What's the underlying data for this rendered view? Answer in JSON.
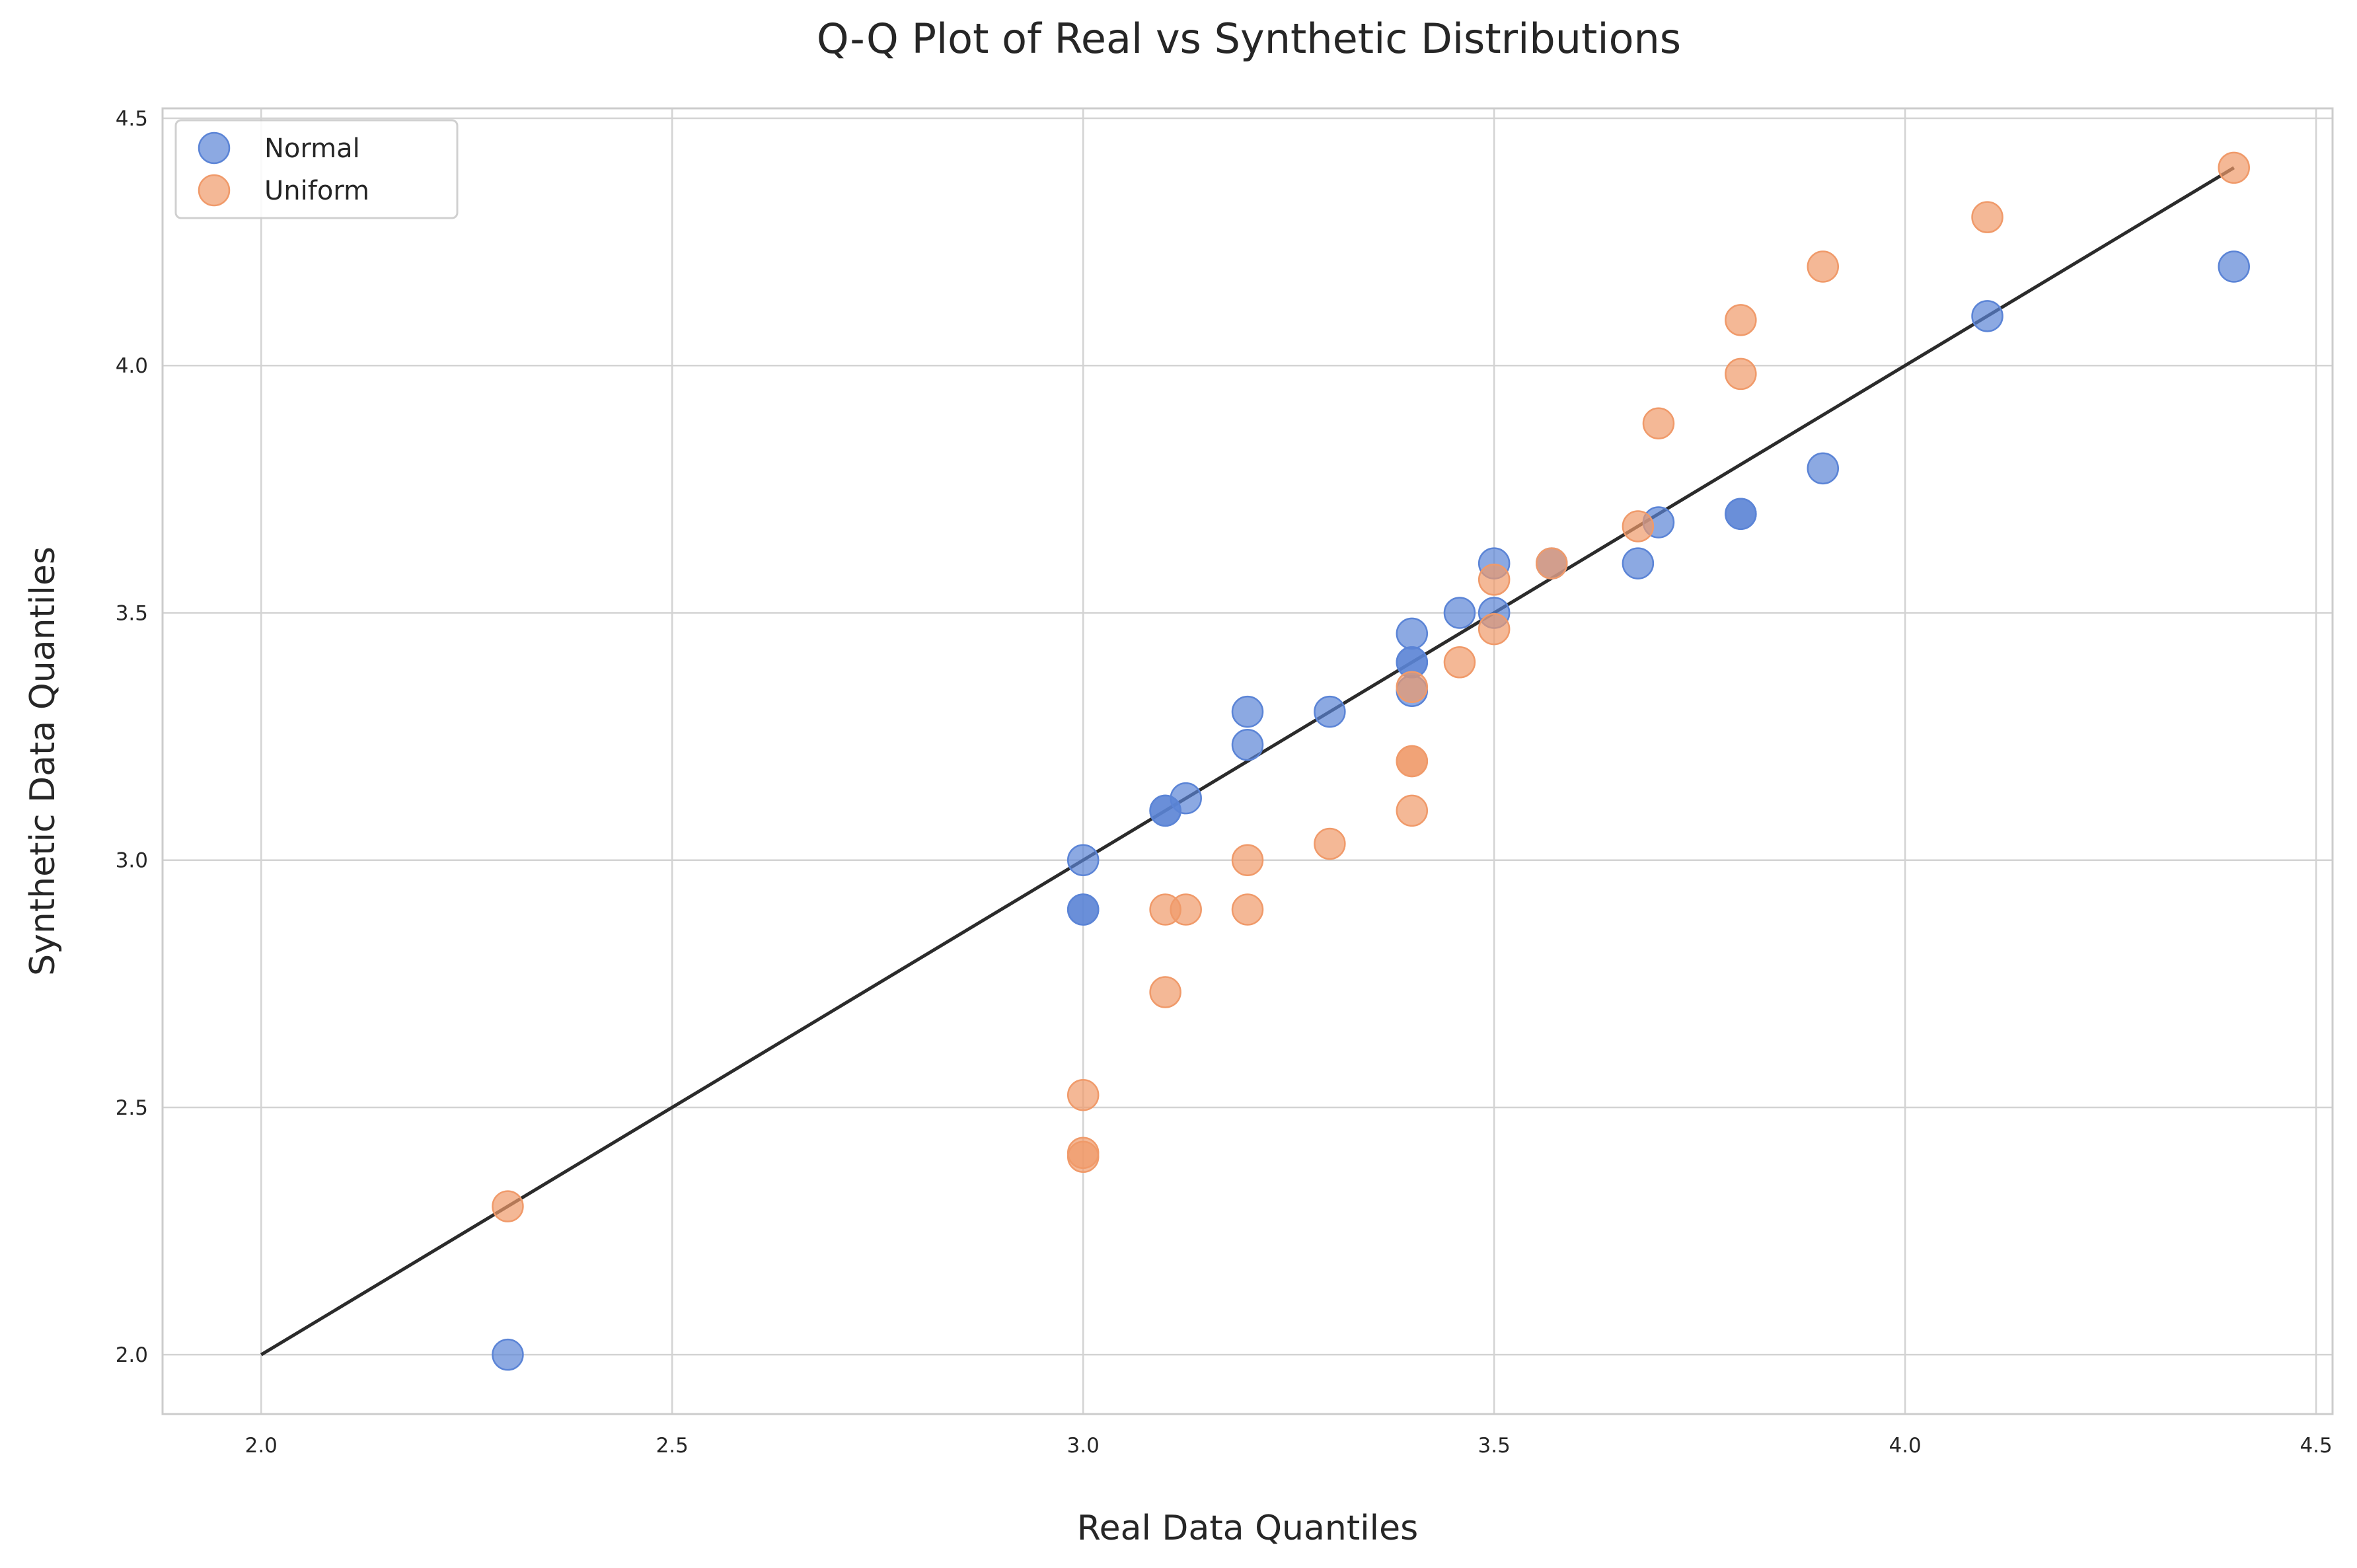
{
  "chart_data": {
    "type": "scatter",
    "title": "Q-Q Plot of Real vs Synthetic Distributions",
    "xlabel": "Real Data Quantiles",
    "ylabel": "Synthetic Data Quantiles",
    "xlim": [
      1.88,
      4.52
    ],
    "ylim": [
      1.88,
      4.52
    ],
    "xticks": [
      "2.0",
      "2.5",
      "3.0",
      "3.5",
      "4.0",
      "4.5"
    ],
    "yticks": [
      "2.0",
      "2.5",
      "3.0",
      "3.5",
      "4.0",
      "4.5"
    ],
    "grid": true,
    "legend_position": "top-left",
    "reference_line": {
      "x": [
        2.0,
        4.4
      ],
      "y": [
        2.0,
        4.4
      ],
      "color": "#2b2b2b"
    },
    "series": [
      {
        "name": "Normal",
        "color": "#5b84d6",
        "points": [
          [
            2.3,
            2.0
          ],
          [
            3.0,
            2.9
          ],
          [
            3.0,
            2.9
          ],
          [
            3.0,
            3.0
          ],
          [
            3.1,
            3.1
          ],
          [
            3.1,
            3.1
          ],
          [
            3.125,
            3.125
          ],
          [
            3.2,
            3.233
          ],
          [
            3.2,
            3.3
          ],
          [
            3.3,
            3.3
          ],
          [
            3.4,
            3.342
          ],
          [
            3.4,
            3.4
          ],
          [
            3.4,
            3.4
          ],
          [
            3.4,
            3.458
          ],
          [
            3.458,
            3.5
          ],
          [
            3.5,
            3.5
          ],
          [
            3.5,
            3.6
          ],
          [
            3.57,
            3.6
          ],
          [
            3.675,
            3.6
          ],
          [
            3.7,
            3.683
          ],
          [
            3.8,
            3.7
          ],
          [
            3.8,
            3.7
          ],
          [
            3.9,
            3.792
          ],
          [
            4.1,
            4.1
          ],
          [
            4.4,
            4.2
          ]
        ]
      },
      {
        "name": "Uniform",
        "color": "#f09a6a",
        "points": [
          [
            2.3,
            2.3
          ],
          [
            3.0,
            2.4
          ],
          [
            3.0,
            2.408
          ],
          [
            3.0,
            2.525
          ],
          [
            3.1,
            2.733
          ],
          [
            3.1,
            2.9
          ],
          [
            3.125,
            2.9
          ],
          [
            3.2,
            2.9
          ],
          [
            3.2,
            3.0
          ],
          [
            3.3,
            3.033
          ],
          [
            3.4,
            3.1
          ],
          [
            3.4,
            3.2
          ],
          [
            3.4,
            3.2
          ],
          [
            3.4,
            3.35
          ],
          [
            3.458,
            3.4
          ],
          [
            3.5,
            3.467
          ],
          [
            3.5,
            3.567
          ],
          [
            3.57,
            3.6
          ],
          [
            3.675,
            3.675
          ],
          [
            3.7,
            3.883
          ],
          [
            3.8,
            3.983
          ],
          [
            3.8,
            4.092
          ],
          [
            3.9,
            4.2
          ],
          [
            4.1,
            4.3
          ],
          [
            4.4,
            4.4
          ]
        ]
      }
    ]
  }
}
